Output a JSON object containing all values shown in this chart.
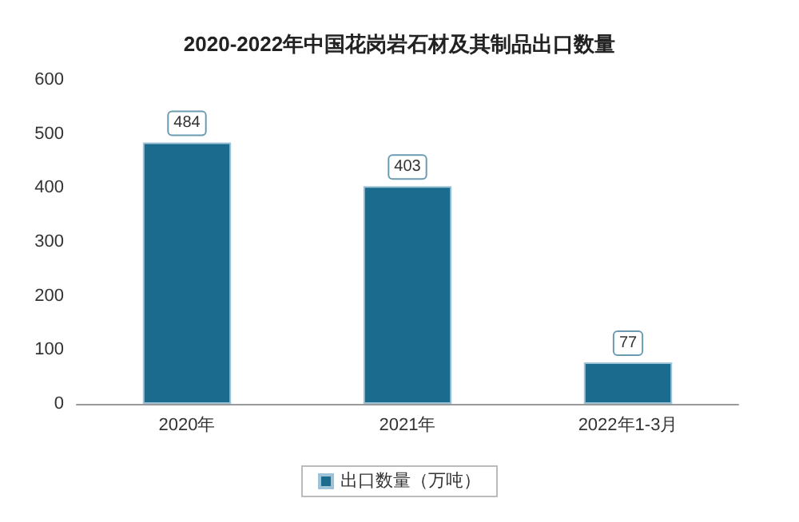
{
  "chart_data": {
    "type": "bar",
    "title": "2020-2022年中国花岗岩石材及其制品出口数量",
    "categories": [
      "2020年",
      "2021年",
      "2022年1-3月"
    ],
    "series": [
      {
        "name": "出口数量（万吨）",
        "color": "#1a6b8e",
        "values": [
          484,
          403,
          77
        ]
      }
    ],
    "ylim": [
      0,
      600
    ],
    "yticks": [
      0,
      100,
      200,
      300,
      400,
      500,
      600
    ],
    "grid": false,
    "legend": "bottom",
    "data_labels": true
  }
}
